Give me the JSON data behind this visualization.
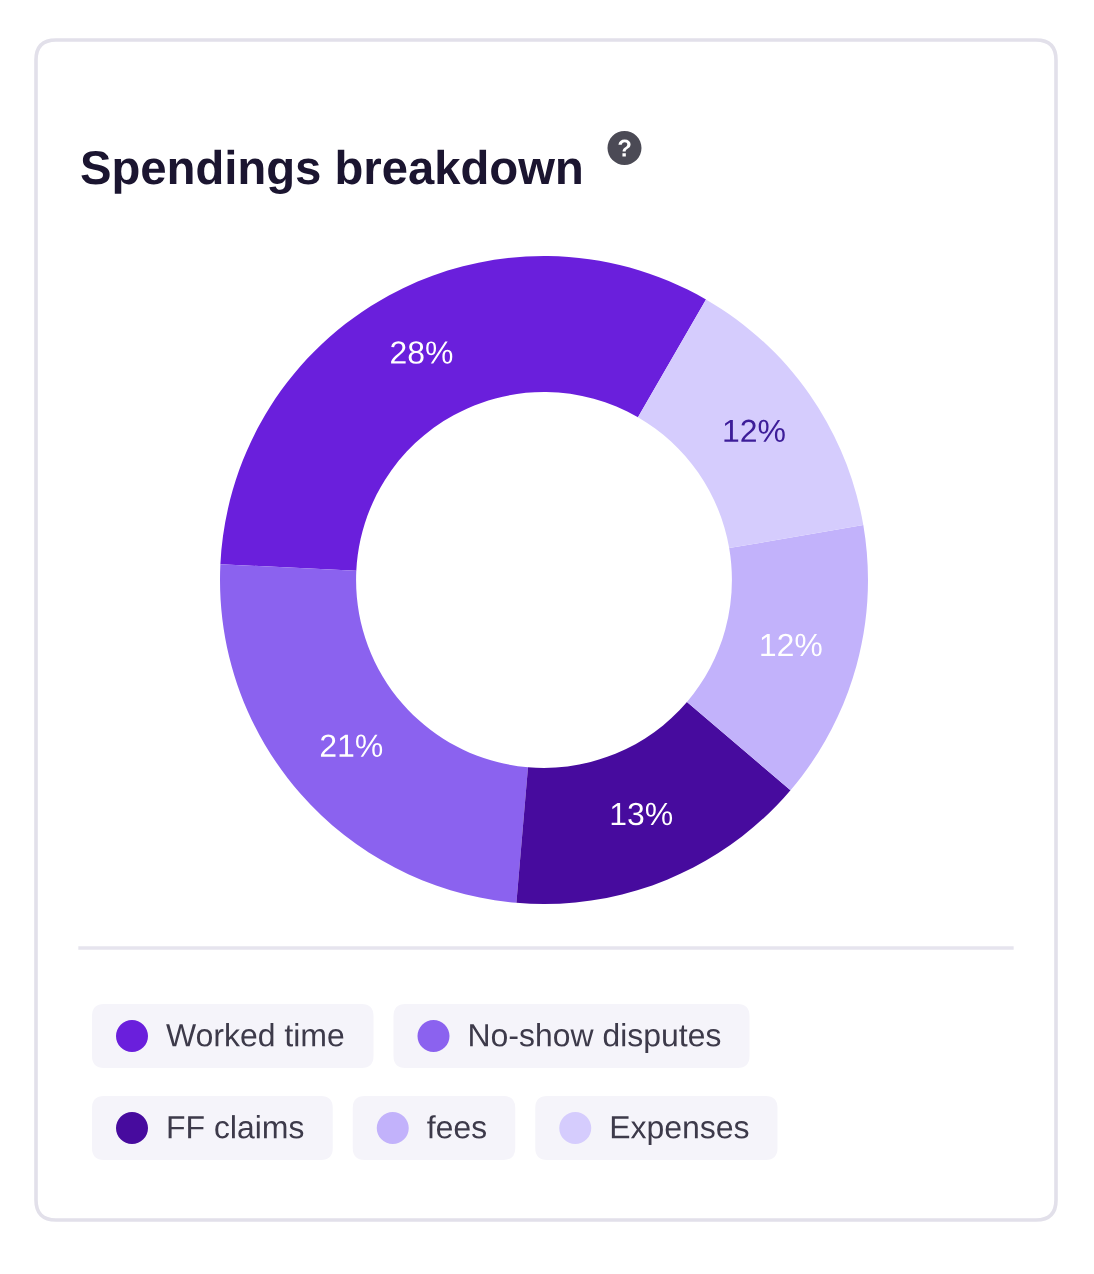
{
  "chart_data": {
    "type": "donut",
    "title": "Spendings breakdown",
    "categories": [
      "Worked time",
      "No-show disputes",
      "FF claims",
      "fees",
      "Expenses"
    ],
    "values": [
      28,
      21,
      13,
      12,
      12
    ],
    "value_labels": [
      "28%",
      "21%",
      "13%",
      "12%",
      "12%"
    ],
    "colors": [
      "#6a1fdc",
      "#8b62ef",
      "#470b9e",
      "#c2b2fb",
      "#d5ccfd"
    ],
    "legend": "bottom"
  }
}
